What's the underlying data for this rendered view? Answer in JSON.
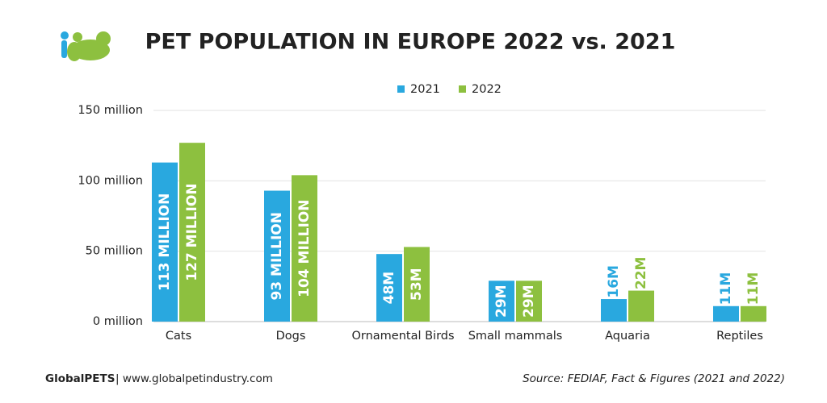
{
  "chart_data": {
    "type": "bar",
    "title": "PET POPULATION IN EUROPE 2022 vs. 2021",
    "categories": [
      "Cats",
      "Dogs",
      "Ornamental Birds",
      "Small mammals",
      "Aquaria",
      "Reptiles"
    ],
    "series": [
      {
        "name": "2021",
        "color": "#29a8df",
        "values": [
          113,
          93,
          48,
          29,
          16,
          11
        ],
        "value_labels": [
          "113 MILLION",
          "93 MILLION",
          "48M",
          "29M",
          "16M",
          "11M"
        ]
      },
      {
        "name": "2022",
        "color": "#8dc03f",
        "values": [
          127,
          104,
          53,
          29,
          22,
          11
        ],
        "value_labels": [
          "127 MILLION",
          "104 MILLION",
          "53M",
          "29M",
          "22M",
          "11M"
        ]
      }
    ],
    "ylim": [
      0,
      150
    ],
    "yticks": [
      {
        "value": 0,
        "label": "0 million"
      },
      {
        "value": 50,
        "label": "50 million"
      },
      {
        "value": 100,
        "label": "100 million"
      },
      {
        "value": 150,
        "label": "150 million"
      }
    ],
    "grid": true,
    "legend": "top"
  },
  "footer": {
    "brand": "GlobalPETS",
    "website": "| www.globalpetindustry.com",
    "source": "Source: FEDIAF, Fact & Figures (2021 and 2022)"
  }
}
